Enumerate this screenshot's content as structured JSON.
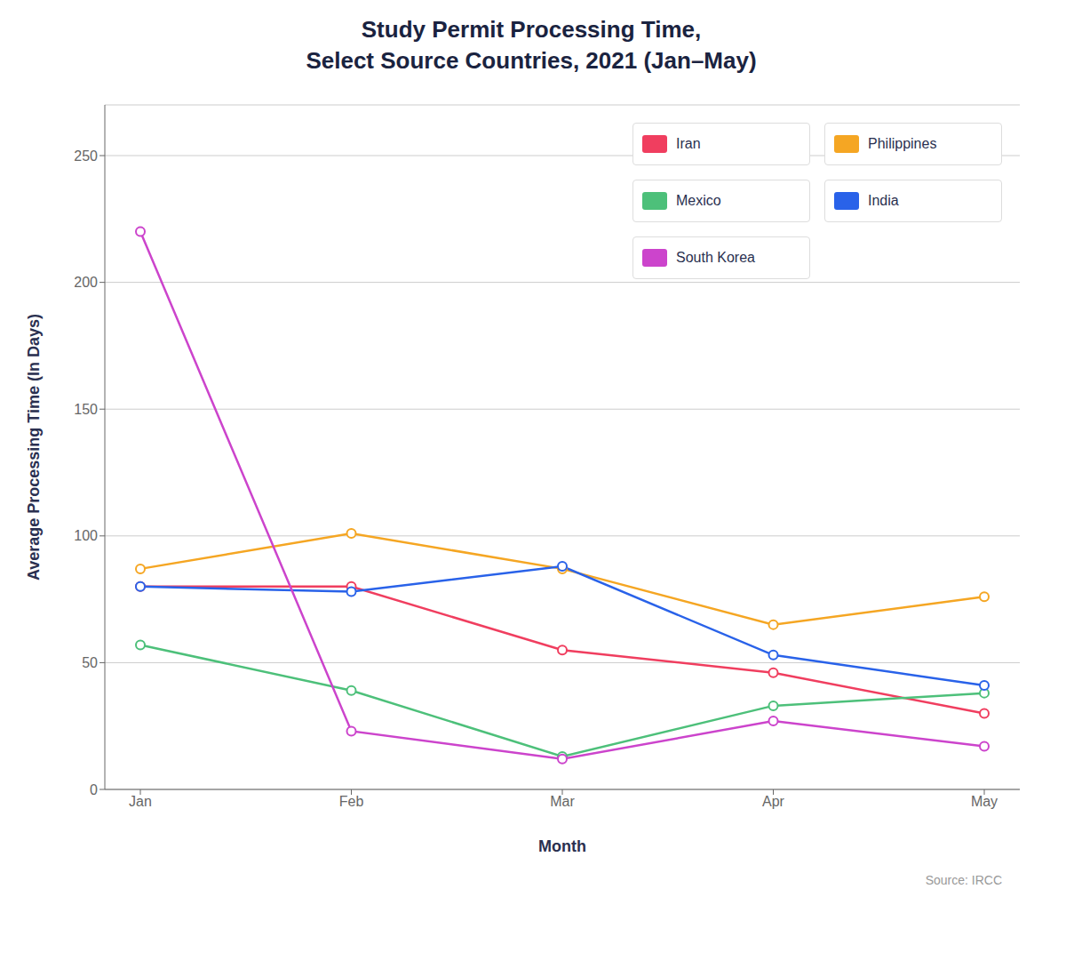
{
  "chart_data": {
    "type": "line",
    "title": "Study Permit Processing Time,\nSelect Source Countries, 2021 (Jan–May)",
    "xlabel": "Month",
    "ylabel": "Average Processing Time (In Days)",
    "annotations": [
      "Source: IRCC"
    ],
    "categories": [
      "Jan",
      "Feb",
      "Mar",
      "Apr",
      "May"
    ],
    "series": [
      {
        "name": "Iran",
        "color": "#F03E5F",
        "values": [
          80,
          80,
          55,
          46,
          30
        ]
      },
      {
        "name": "Philippines",
        "color": "#F5A623",
        "values": [
          87,
          101,
          87,
          65,
          76
        ]
      },
      {
        "name": "Mexico",
        "color": "#4DC07A",
        "values": [
          57,
          39,
          13,
          33,
          38
        ]
      },
      {
        "name": "India",
        "color": "#2962E9",
        "values": [
          80,
          78,
          88,
          53,
          41
        ]
      },
      {
        "name": "South Korea",
        "color": "#CC44CC",
        "values": [
          220,
          23,
          12,
          27,
          17
        ]
      }
    ],
    "ylim": [
      0,
      270
    ],
    "yticks": [
      0,
      50,
      100,
      150,
      200,
      250
    ],
    "grid": true,
    "legend": "upper right",
    "marker": "circle"
  }
}
